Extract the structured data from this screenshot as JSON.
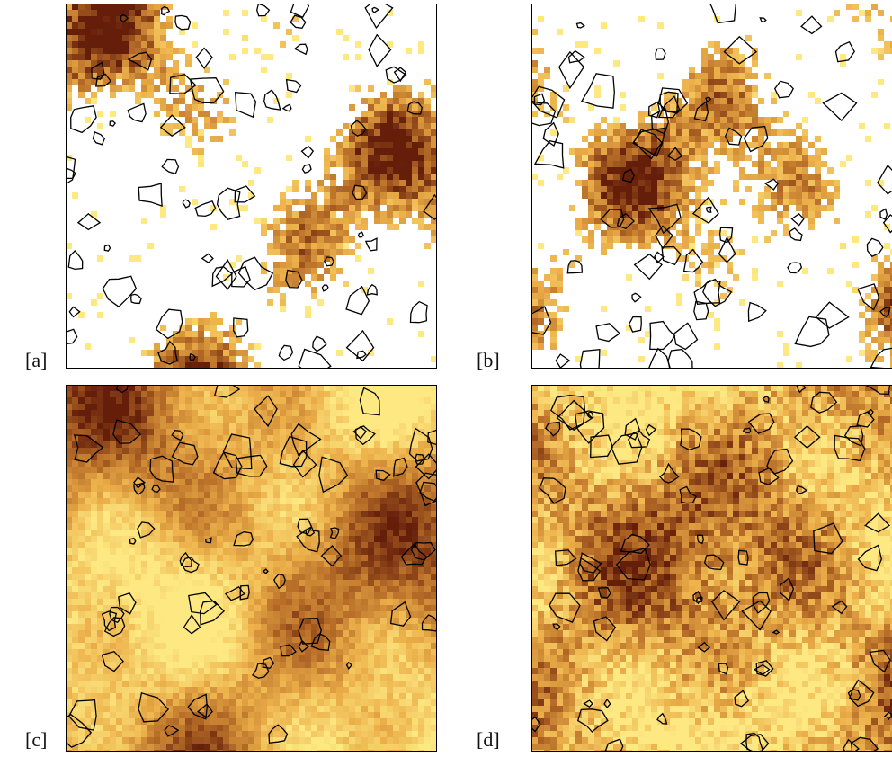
{
  "panels": [
    {
      "label": "[a]"
    },
    {
      "label": "[b]"
    },
    {
      "label": "[c]"
    },
    {
      "label": "[d]"
    }
  ]
}
